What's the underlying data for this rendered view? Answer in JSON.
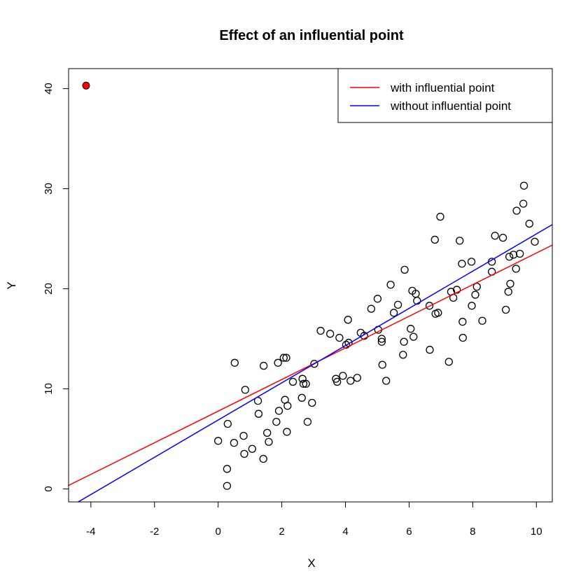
{
  "chart_data": {
    "type": "scatter",
    "title": "Effect of an influential point",
    "xlabel": "X",
    "ylabel": "Y",
    "xlim": [
      -4.7,
      10.5
    ],
    "ylim": [
      -1.3,
      42
    ],
    "x_ticks": [
      -4,
      -2,
      0,
      2,
      4,
      6,
      8,
      10
    ],
    "y_ticks": [
      0,
      10,
      20,
      30,
      40
    ],
    "grid": false,
    "legend": {
      "position": "top-right",
      "entries": [
        {
          "label": "with influential point",
          "color": "#ff0000"
        },
        {
          "label": "without influential point",
          "color": "#0000ff"
        }
      ]
    },
    "lines": [
      {
        "name": "with influential point",
        "color": "#ff0000",
        "intercept": 7.77,
        "slope": 1.58
      },
      {
        "name": "without influential point",
        "color": "#0000ff",
        "intercept": 6.88,
        "slope": 1.86
      }
    ],
    "influential_point": {
      "x": -4.15,
      "y": 40.3,
      "color": "#ff0000"
    },
    "points": [
      [
        0.0,
        4.8
      ],
      [
        0.28,
        2.0
      ],
      [
        0.28,
        0.3
      ],
      [
        0.3,
        6.5
      ],
      [
        0.5,
        4.6
      ],
      [
        0.52,
        12.6
      ],
      [
        0.8,
        5.3
      ],
      [
        0.82,
        3.5
      ],
      [
        0.85,
        9.9
      ],
      [
        1.07,
        4.0
      ],
      [
        1.25,
        8.8
      ],
      [
        1.27,
        7.5
      ],
      [
        1.42,
        3.0
      ],
      [
        1.43,
        12.3
      ],
      [
        1.54,
        5.6
      ],
      [
        1.59,
        4.7
      ],
      [
        1.83,
        6.7
      ],
      [
        1.88,
        12.6
      ],
      [
        1.91,
        7.8
      ],
      [
        2.06,
        13.1
      ],
      [
        2.1,
        8.9
      ],
      [
        2.14,
        13.1
      ],
      [
        2.16,
        5.7
      ],
      [
        2.18,
        8.3
      ],
      [
        2.35,
        10.7
      ],
      [
        2.63,
        9.1
      ],
      [
        2.65,
        11.0
      ],
      [
        2.68,
        10.5
      ],
      [
        2.76,
        10.5
      ],
      [
        2.81,
        6.7
      ],
      [
        2.95,
        8.6
      ],
      [
        3.02,
        12.5
      ],
      [
        3.22,
        15.8
      ],
      [
        3.52,
        15.5
      ],
      [
        3.7,
        11.0
      ],
      [
        3.74,
        10.7
      ],
      [
        3.81,
        15.1
      ],
      [
        3.92,
        11.3
      ],
      [
        4.02,
        14.4
      ],
      [
        4.1,
        14.6
      ],
      [
        4.08,
        16.9
      ],
      [
        4.16,
        10.8
      ],
      [
        4.37,
        11.1
      ],
      [
        4.48,
        15.6
      ],
      [
        4.59,
        15.3
      ],
      [
        4.81,
        18.0
      ],
      [
        5.01,
        19.0
      ],
      [
        5.03,
        15.9
      ],
      [
        5.14,
        15.0
      ],
      [
        5.14,
        14.7
      ],
      [
        5.16,
        12.4
      ],
      [
        5.28,
        10.8
      ],
      [
        5.42,
        20.4
      ],
      [
        5.52,
        17.6
      ],
      [
        5.65,
        18.4
      ],
      [
        5.81,
        13.4
      ],
      [
        5.84,
        14.7
      ],
      [
        5.86,
        21.9
      ],
      [
        6.05,
        16.0
      ],
      [
        6.1,
        19.8
      ],
      [
        6.14,
        15.2
      ],
      [
        6.21,
        19.5
      ],
      [
        6.25,
        18.8
      ],
      [
        6.64,
        18.3
      ],
      [
        6.65,
        13.9
      ],
      [
        6.81,
        24.9
      ],
      [
        6.83,
        17.5
      ],
      [
        6.91,
        17.6
      ],
      [
        6.98,
        27.2
      ],
      [
        7.25,
        12.7
      ],
      [
        7.32,
        19.7
      ],
      [
        7.39,
        19.1
      ],
      [
        7.5,
        19.9
      ],
      [
        7.59,
        24.8
      ],
      [
        7.66,
        22.5
      ],
      [
        7.68,
        16.7
      ],
      [
        7.69,
        15.1
      ],
      [
        7.96,
        22.7
      ],
      [
        7.97,
        18.3
      ],
      [
        8.08,
        19.4
      ],
      [
        8.13,
        20.2
      ],
      [
        8.3,
        16.8
      ],
      [
        8.6,
        21.7
      ],
      [
        8.6,
        22.7
      ],
      [
        8.7,
        25.3
      ],
      [
        8.95,
        25.1
      ],
      [
        9.04,
        17.9
      ],
      [
        9.12,
        19.7
      ],
      [
        9.15,
        23.2
      ],
      [
        9.18,
        20.5
      ],
      [
        9.28,
        23.4
      ],
      [
        9.36,
        22.0
      ],
      [
        9.38,
        27.8
      ],
      [
        9.48,
        23.5
      ],
      [
        9.59,
        28.5
      ],
      [
        9.61,
        30.3
      ],
      [
        9.78,
        26.5
      ],
      [
        9.95,
        24.7
      ]
    ]
  }
}
